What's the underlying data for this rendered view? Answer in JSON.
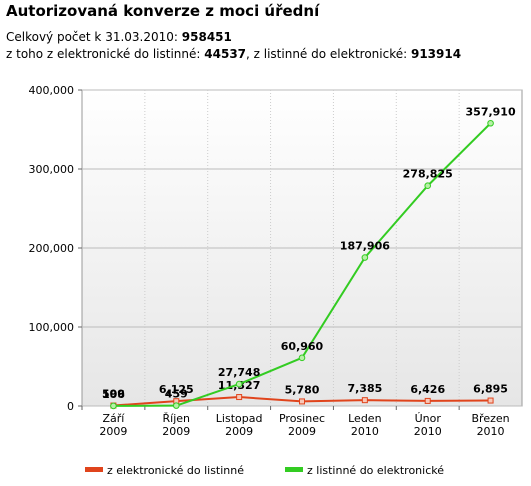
{
  "header": {
    "title": "Autorizovaná konverze z moci úřední",
    "total_label": "Celkový počet k 31.03.2010:",
    "total_value": "958451",
    "e2l_label": "z toho z elektronické do listinné:",
    "e2l_value": "44537",
    "l2e_label": ", z listinné do elektronické:",
    "l2e_value": "913914"
  },
  "chart_data": {
    "type": "line",
    "categories": [
      [
        "Září",
        "2009"
      ],
      [
        "Říjen",
        "2009"
      ],
      [
        "Listopad",
        "2009"
      ],
      [
        "Prosinec",
        "2009"
      ],
      [
        "Leden",
        "2010"
      ],
      [
        "Únor",
        "2010"
      ],
      [
        "Březen",
        "2010"
      ]
    ],
    "series": [
      {
        "name": "z elektronické do listinné",
        "color": "#e0441c",
        "values": [
          599,
          6125,
          11327,
          5780,
          7385,
          6426,
          6895
        ],
        "value_labels": [
          "599",
          "6,125",
          "11,327",
          "5,780",
          "7,385",
          "6,426",
          "6,895"
        ]
      },
      {
        "name": "z listinné do elektronické",
        "color": "#33cc22",
        "values": [
          106,
          459,
          27748,
          60960,
          187906,
          278825,
          357910
        ],
        "value_labels": [
          "106",
          "459",
          "27,748",
          "60,960",
          "187,906",
          "278,825",
          "357,910"
        ]
      }
    ],
    "ylim": [
      0,
      400000
    ],
    "yticks": [
      {
        "value": 0,
        "label": "0"
      },
      {
        "value": 100000,
        "label": "100,000"
      },
      {
        "value": 200000,
        "label": "200,000"
      },
      {
        "value": 300000,
        "label": "300,000"
      },
      {
        "value": 400000,
        "label": "400,000"
      }
    ],
    "grid": true,
    "legend": "bottom"
  }
}
